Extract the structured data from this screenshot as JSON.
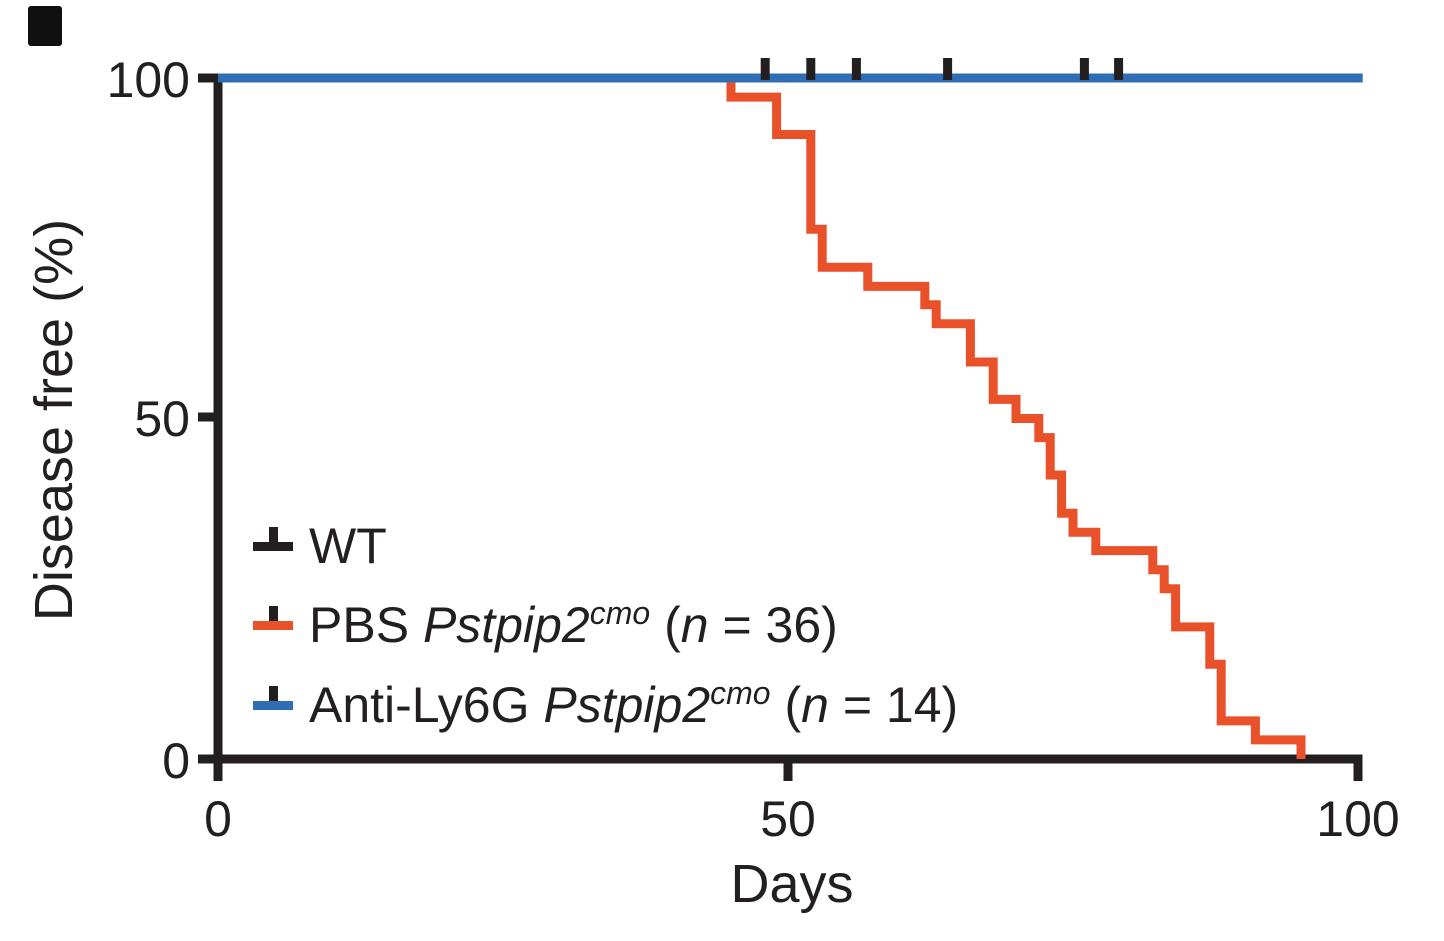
{
  "colors": {
    "wt": "#231f20",
    "pbs": "#e9512a",
    "anti_ly6g": "#2f6eb5",
    "axis": "#231f20"
  },
  "chart_data": {
    "type": "line",
    "subtype": "kaplan-meier-step",
    "title": "",
    "xlabel": "Days",
    "ylabel": "Disease free (%)",
    "xlim": [
      0,
      100
    ],
    "ylim": [
      0,
      100
    ],
    "x_ticks": [
      0,
      50,
      100
    ],
    "y_ticks": [
      0,
      50,
      100
    ],
    "x_tick_labels": [
      "0",
      "50",
      "100"
    ],
    "y_tick_labels": [
      "0",
      "50",
      "100"
    ],
    "grid": false,
    "legend_position": "inside lower-left",
    "series": [
      {
        "id": "wt",
        "name": "WT",
        "color": "#231f20",
        "points": [
          [
            0,
            100
          ],
          [
            100.4,
            100
          ]
        ],
        "censor_days": [
          48,
          52,
          56,
          64,
          76,
          79
        ]
      },
      {
        "id": "pbs-pstpip2cmo",
        "name": "PBS Pstpip2cmo (n = 36)",
        "color": "#e9512a",
        "points": [
          [
            45,
            100
          ],
          [
            45,
            97.2
          ],
          [
            49,
            97.2
          ],
          [
            49,
            91.7
          ],
          [
            52,
            91.7
          ],
          [
            52,
            77.8
          ],
          [
            53,
            77.8
          ],
          [
            53,
            72.2
          ],
          [
            57,
            72.2
          ],
          [
            57,
            69.4
          ],
          [
            62,
            69.4
          ],
          [
            62,
            66.7
          ],
          [
            63,
            66.7
          ],
          [
            63,
            63.9
          ],
          [
            66,
            63.9
          ],
          [
            66,
            58.3
          ],
          [
            68,
            58.3
          ],
          [
            68,
            52.8
          ],
          [
            70,
            52.8
          ],
          [
            70,
            50
          ],
          [
            72,
            50
          ],
          [
            72,
            47.2
          ],
          [
            73,
            47.2
          ],
          [
            73,
            41.7
          ],
          [
            74,
            41.7
          ],
          [
            74,
            36.1
          ],
          [
            75,
            36.1
          ],
          [
            75,
            33.3
          ],
          [
            77,
            33.3
          ],
          [
            77,
            30.6
          ],
          [
            82,
            30.6
          ],
          [
            82,
            27.8
          ],
          [
            83,
            27.8
          ],
          [
            83,
            25
          ],
          [
            84,
            25
          ],
          [
            84,
            19.4
          ],
          [
            87,
            19.4
          ],
          [
            87,
            13.9
          ],
          [
            88,
            13.9
          ],
          [
            88,
            5.6
          ],
          [
            91,
            5.6
          ],
          [
            91,
            2.8
          ],
          [
            95,
            2.8
          ],
          [
            95,
            0
          ]
        ]
      },
      {
        "id": "anti-ly6g-pstpip2cmo",
        "name": "Anti-Ly6G Pstpip2cmo (n = 14)",
        "color": "#2f6eb5",
        "points": [
          [
            0,
            100
          ],
          [
            100.4,
            100
          ]
        ]
      }
    ]
  },
  "legend": {
    "censor_tick_color": "#231f20",
    "items": [
      {
        "prefix": "WT",
        "gene": "",
        "sup": "",
        "open": "",
        "n": "",
        "rest": "",
        "color": "#231f20"
      },
      {
        "prefix": "PBS ",
        "gene": "Pstpip2",
        "sup": "cmo",
        "open": " (",
        "n": "n",
        "rest": " = 36)",
        "color": "#e9512a"
      },
      {
        "prefix": "Anti-Ly6G ",
        "gene": "Pstpip2",
        "sup": "cmo",
        "open": " (",
        "n": "n",
        "rest": " = 14)",
        "color": "#2f6eb5"
      }
    ]
  }
}
